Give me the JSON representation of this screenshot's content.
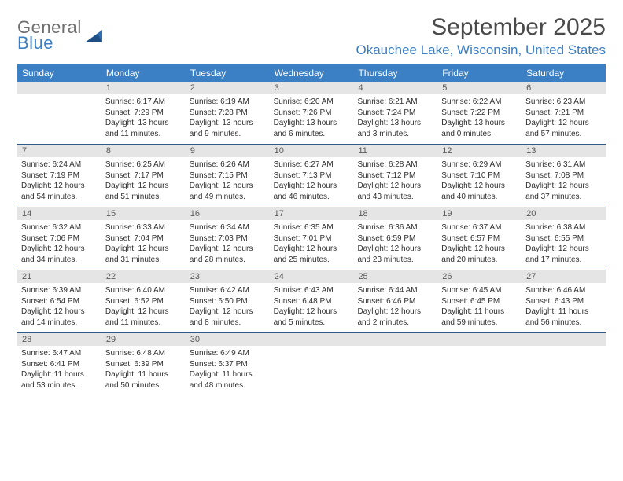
{
  "logo": {
    "top": "General",
    "bottom": "Blue"
  },
  "title": "September 2025",
  "location": "Okauchee Lake, Wisconsin, United States",
  "colors": {
    "header_bg": "#3b7fc4",
    "header_text": "#ffffff",
    "daynum_bg": "#e5e5e5",
    "daynum_text": "#5a5a5a",
    "divider": "#2e5a8a",
    "title_text": "#4a4a4a",
    "location_text": "#3b7fc4",
    "logo_gray": "#6e6e6e",
    "logo_blue": "#3b7fc4",
    "body_bg": "#ffffff",
    "cell_text": "#2f2f2f"
  },
  "daysOfWeek": [
    "Sunday",
    "Monday",
    "Tuesday",
    "Wednesday",
    "Thursday",
    "Friday",
    "Saturday"
  ],
  "weeks": [
    [
      {
        "num": "",
        "sunrise": "",
        "sunset": "",
        "daylight": ""
      },
      {
        "num": "1",
        "sunrise": "Sunrise: 6:17 AM",
        "sunset": "Sunset: 7:29 PM",
        "daylight": "Daylight: 13 hours and 11 minutes."
      },
      {
        "num": "2",
        "sunrise": "Sunrise: 6:19 AM",
        "sunset": "Sunset: 7:28 PM",
        "daylight": "Daylight: 13 hours and 9 minutes."
      },
      {
        "num": "3",
        "sunrise": "Sunrise: 6:20 AM",
        "sunset": "Sunset: 7:26 PM",
        "daylight": "Daylight: 13 hours and 6 minutes."
      },
      {
        "num": "4",
        "sunrise": "Sunrise: 6:21 AM",
        "sunset": "Sunset: 7:24 PM",
        "daylight": "Daylight: 13 hours and 3 minutes."
      },
      {
        "num": "5",
        "sunrise": "Sunrise: 6:22 AM",
        "sunset": "Sunset: 7:22 PM",
        "daylight": "Daylight: 13 hours and 0 minutes."
      },
      {
        "num": "6",
        "sunrise": "Sunrise: 6:23 AM",
        "sunset": "Sunset: 7:21 PM",
        "daylight": "Daylight: 12 hours and 57 minutes."
      }
    ],
    [
      {
        "num": "7",
        "sunrise": "Sunrise: 6:24 AM",
        "sunset": "Sunset: 7:19 PM",
        "daylight": "Daylight: 12 hours and 54 minutes."
      },
      {
        "num": "8",
        "sunrise": "Sunrise: 6:25 AM",
        "sunset": "Sunset: 7:17 PM",
        "daylight": "Daylight: 12 hours and 51 minutes."
      },
      {
        "num": "9",
        "sunrise": "Sunrise: 6:26 AM",
        "sunset": "Sunset: 7:15 PM",
        "daylight": "Daylight: 12 hours and 49 minutes."
      },
      {
        "num": "10",
        "sunrise": "Sunrise: 6:27 AM",
        "sunset": "Sunset: 7:13 PM",
        "daylight": "Daylight: 12 hours and 46 minutes."
      },
      {
        "num": "11",
        "sunrise": "Sunrise: 6:28 AM",
        "sunset": "Sunset: 7:12 PM",
        "daylight": "Daylight: 12 hours and 43 minutes."
      },
      {
        "num": "12",
        "sunrise": "Sunrise: 6:29 AM",
        "sunset": "Sunset: 7:10 PM",
        "daylight": "Daylight: 12 hours and 40 minutes."
      },
      {
        "num": "13",
        "sunrise": "Sunrise: 6:31 AM",
        "sunset": "Sunset: 7:08 PM",
        "daylight": "Daylight: 12 hours and 37 minutes."
      }
    ],
    [
      {
        "num": "14",
        "sunrise": "Sunrise: 6:32 AM",
        "sunset": "Sunset: 7:06 PM",
        "daylight": "Daylight: 12 hours and 34 minutes."
      },
      {
        "num": "15",
        "sunrise": "Sunrise: 6:33 AM",
        "sunset": "Sunset: 7:04 PM",
        "daylight": "Daylight: 12 hours and 31 minutes."
      },
      {
        "num": "16",
        "sunrise": "Sunrise: 6:34 AM",
        "sunset": "Sunset: 7:03 PM",
        "daylight": "Daylight: 12 hours and 28 minutes."
      },
      {
        "num": "17",
        "sunrise": "Sunrise: 6:35 AM",
        "sunset": "Sunset: 7:01 PM",
        "daylight": "Daylight: 12 hours and 25 minutes."
      },
      {
        "num": "18",
        "sunrise": "Sunrise: 6:36 AM",
        "sunset": "Sunset: 6:59 PM",
        "daylight": "Daylight: 12 hours and 23 minutes."
      },
      {
        "num": "19",
        "sunrise": "Sunrise: 6:37 AM",
        "sunset": "Sunset: 6:57 PM",
        "daylight": "Daylight: 12 hours and 20 minutes."
      },
      {
        "num": "20",
        "sunrise": "Sunrise: 6:38 AM",
        "sunset": "Sunset: 6:55 PM",
        "daylight": "Daylight: 12 hours and 17 minutes."
      }
    ],
    [
      {
        "num": "21",
        "sunrise": "Sunrise: 6:39 AM",
        "sunset": "Sunset: 6:54 PM",
        "daylight": "Daylight: 12 hours and 14 minutes."
      },
      {
        "num": "22",
        "sunrise": "Sunrise: 6:40 AM",
        "sunset": "Sunset: 6:52 PM",
        "daylight": "Daylight: 12 hours and 11 minutes."
      },
      {
        "num": "23",
        "sunrise": "Sunrise: 6:42 AM",
        "sunset": "Sunset: 6:50 PM",
        "daylight": "Daylight: 12 hours and 8 minutes."
      },
      {
        "num": "24",
        "sunrise": "Sunrise: 6:43 AM",
        "sunset": "Sunset: 6:48 PM",
        "daylight": "Daylight: 12 hours and 5 minutes."
      },
      {
        "num": "25",
        "sunrise": "Sunrise: 6:44 AM",
        "sunset": "Sunset: 6:46 PM",
        "daylight": "Daylight: 12 hours and 2 minutes."
      },
      {
        "num": "26",
        "sunrise": "Sunrise: 6:45 AM",
        "sunset": "Sunset: 6:45 PM",
        "daylight": "Daylight: 11 hours and 59 minutes."
      },
      {
        "num": "27",
        "sunrise": "Sunrise: 6:46 AM",
        "sunset": "Sunset: 6:43 PM",
        "daylight": "Daylight: 11 hours and 56 minutes."
      }
    ],
    [
      {
        "num": "28",
        "sunrise": "Sunrise: 6:47 AM",
        "sunset": "Sunset: 6:41 PM",
        "daylight": "Daylight: 11 hours and 53 minutes."
      },
      {
        "num": "29",
        "sunrise": "Sunrise: 6:48 AM",
        "sunset": "Sunset: 6:39 PM",
        "daylight": "Daylight: 11 hours and 50 minutes."
      },
      {
        "num": "30",
        "sunrise": "Sunrise: 6:49 AM",
        "sunset": "Sunset: 6:37 PM",
        "daylight": "Daylight: 11 hours and 48 minutes."
      },
      {
        "num": "",
        "sunrise": "",
        "sunset": "",
        "daylight": ""
      },
      {
        "num": "",
        "sunrise": "",
        "sunset": "",
        "daylight": ""
      },
      {
        "num": "",
        "sunrise": "",
        "sunset": "",
        "daylight": ""
      },
      {
        "num": "",
        "sunrise": "",
        "sunset": "",
        "daylight": ""
      }
    ]
  ]
}
